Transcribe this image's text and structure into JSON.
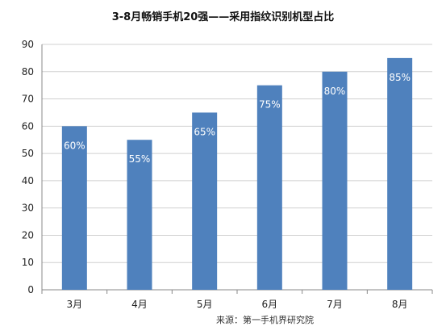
{
  "chart_data": {
    "type": "bar",
    "title": "3-8月畅销手机20强——采用指纹识别机型占比",
    "categories": [
      "3月",
      "4月",
      "5月",
      "6月",
      "7月",
      "8月"
    ],
    "values": [
      60,
      55,
      65,
      75,
      80,
      85
    ],
    "data_labels": [
      "60%",
      "55%",
      "65%",
      "75%",
      "80%",
      "85%"
    ],
    "ylim": [
      0,
      90
    ],
    "y_ticks": [
      0,
      10,
      20,
      30,
      40,
      50,
      60,
      70,
      80,
      90
    ],
    "grid": true,
    "legend": "none",
    "bar_color": "#4F81BD",
    "label_color": "#ffffff",
    "source": "来源：第一手机界研究院"
  }
}
